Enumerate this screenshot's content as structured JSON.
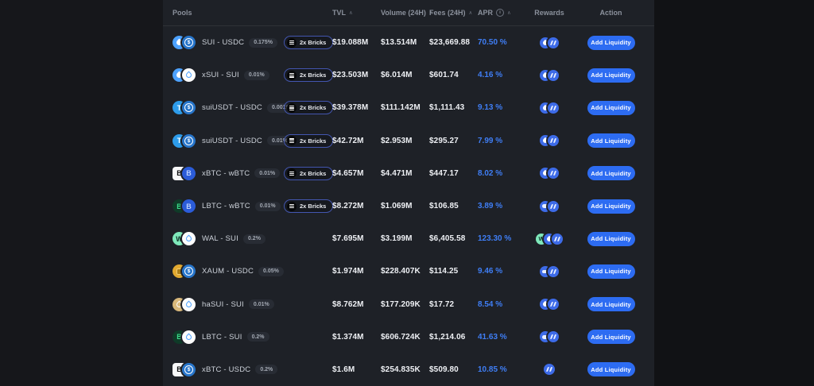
{
  "table": {
    "columns": {
      "pools": "Pools",
      "tvl": "TVL",
      "volume": "Volume (24H)",
      "fees": "Fees (24H)",
      "apr": "APR",
      "rewards": "Rewards",
      "action": "Action"
    },
    "sort_caret": "∧",
    "info_glyph": "i",
    "labels": {
      "bricks": "2x Bricks",
      "add_liquidity": "Add Liquidity"
    },
    "rows": [
      {
        "pair": "SUI - USDC",
        "fee_tier": "0.175%",
        "tokens": [
          "sui",
          "usdc"
        ],
        "bricks": true,
        "tvl": "$19.088M",
        "volume": "$13.514M",
        "fees": "$23,669.88",
        "apr": "70.50 %",
        "rewards": [
          "sui-reward",
          "mmt"
        ]
      },
      {
        "pair": "xSUI - SUI",
        "fee_tier": "0.01%",
        "tokens": [
          "sui",
          "sui-white"
        ],
        "bricks": true,
        "tvl": "$23.503M",
        "volume": "$6.014M",
        "fees": "$601.74",
        "apr": "4.16 %",
        "rewards": [
          "sui-reward",
          "mmt"
        ]
      },
      {
        "pair": "suiUSDT - USDC",
        "fee_tier": "0.001%",
        "tokens": [
          "usdt",
          "usdc"
        ],
        "bricks": true,
        "tvl": "$39.378M",
        "volume": "$111.142M",
        "fees": "$1,111.43",
        "apr": "9.13 %",
        "rewards": [
          "sui-reward",
          "mmt"
        ]
      },
      {
        "pair": "suiUSDT - USDC",
        "fee_tier": "0.01%",
        "tokens": [
          "usdt",
          "usdc"
        ],
        "bricks": true,
        "tvl": "$42.72M",
        "volume": "$2.953M",
        "fees": "$295.27",
        "apr": "7.99 %",
        "rewards": [
          "sui-reward",
          "mmt"
        ]
      },
      {
        "pair": "xBTC - wBTC",
        "fee_tier": "0.01%",
        "tokens": [
          "xbtc",
          "wbtc"
        ],
        "bricks": true,
        "tvl": "$4.657M",
        "volume": "$4.471M",
        "fees": "$447.17",
        "apr": "8.02 %",
        "rewards": [
          "sui-reward",
          "mmt"
        ]
      },
      {
        "pair": "LBTC - wBTC",
        "fee_tier": "0.01%",
        "tokens": [
          "lbtc",
          "wbtc"
        ],
        "bricks": true,
        "tvl": "$8.272M",
        "volume": "$1.069M",
        "fees": "$106.85",
        "apr": "3.89 %",
        "rewards": [
          "bar",
          "mmt"
        ]
      },
      {
        "pair": "WAL - SUI",
        "fee_tier": "0.2%",
        "tokens": [
          "wal",
          "sui-white"
        ],
        "bricks": false,
        "tvl": "$7.695M",
        "volume": "$3.199M",
        "fees": "$6,405.58",
        "apr": "123.30 %",
        "rewards": [
          "wal-reward",
          "sui-reward",
          "mmt"
        ]
      },
      {
        "pair": "XAUM - USDC",
        "fee_tier": "0.05%",
        "tokens": [
          "xaum",
          "usdc"
        ],
        "bricks": false,
        "tvl": "$1.974M",
        "volume": "$228.407K",
        "fees": "$114.25",
        "apr": "9.46 %",
        "rewards": [
          "bar",
          "mmt"
        ]
      },
      {
        "pair": "haSUI - SUI",
        "fee_tier": "0.01%",
        "tokens": [
          "hasui",
          "sui-white"
        ],
        "bricks": false,
        "tvl": "$8.762M",
        "volume": "$177.209K",
        "fees": "$17.72",
        "apr": "8.54 %",
        "rewards": [
          "sui-reward",
          "mmt"
        ]
      },
      {
        "pair": "LBTC - SUI",
        "fee_tier": "0.2%",
        "tokens": [
          "lbtc",
          "sui-white"
        ],
        "bricks": false,
        "tvl": "$1.374M",
        "volume": "$606.724K",
        "fees": "$1,214.06",
        "apr": "41.63 %",
        "rewards": [
          "bar",
          "mmt"
        ]
      },
      {
        "pair": "xBTC - USDC",
        "fee_tier": "0.2%",
        "tokens": [
          "xbtc",
          "usdc"
        ],
        "bricks": false,
        "tvl": "$1.6M",
        "volume": "$254.835K",
        "fees": "$509.80",
        "apr": "10.85 %",
        "rewards": [
          "mmt"
        ]
      }
    ],
    "colors": {
      "accent_button": "#2d6cf2",
      "apr_text": "#3f7ef5",
      "table_bg": "#1e2127",
      "page_bg": "#111215",
      "sui_blue": "#4da2ff"
    }
  }
}
